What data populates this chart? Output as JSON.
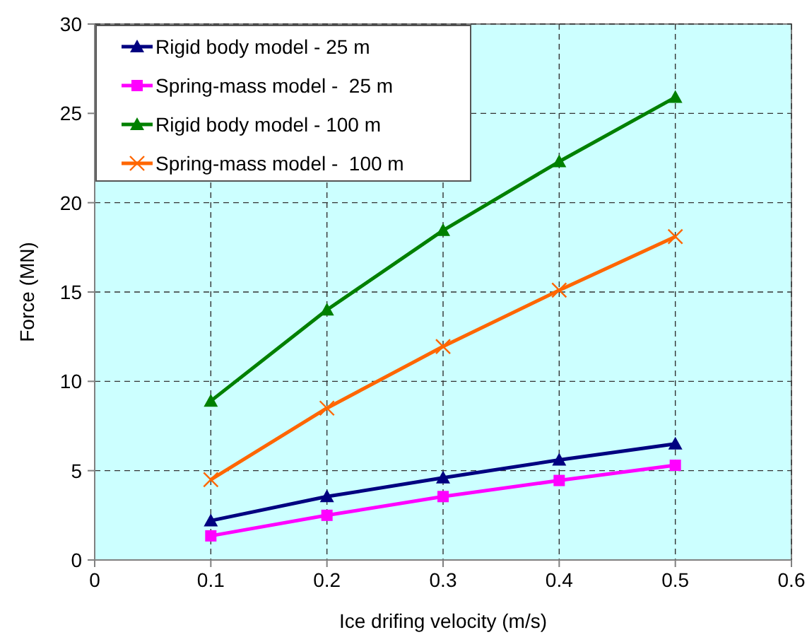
{
  "chart_data": {
    "type": "line",
    "xlabel": "Ice drifing velocity (m/s)",
    "ylabel": "Force (MN)",
    "x": [
      0.1,
      0.2,
      0.3,
      0.4,
      0.5
    ],
    "xlim": [
      0,
      0.6
    ],
    "xticks": [
      0,
      0.1,
      0.2,
      0.3,
      0.4,
      0.5,
      0.6
    ],
    "ylim": [
      0,
      30
    ],
    "yticks": [
      0,
      5,
      10,
      15,
      20,
      25,
      30
    ],
    "grid": true,
    "legend": "top left",
    "series": [
      {
        "name": "Rigid body model - 25 m",
        "color": "#000080",
        "marker": "triangle",
        "values": [
          2.2,
          3.55,
          4.6,
          5.6,
          6.5
        ]
      },
      {
        "name": "Spring-mass model -  25 m",
        "color": "#ff00ff",
        "marker": "square",
        "values": [
          1.35,
          2.5,
          3.55,
          4.45,
          5.3
        ]
      },
      {
        "name": "Rigid body model - 100 m",
        "color": "#008000",
        "marker": "triangle",
        "values": [
          8.9,
          14.0,
          18.45,
          22.3,
          25.9
        ]
      },
      {
        "name": "Spring-mass model -  100 m",
        "color": "#ff6600",
        "marker": "cross",
        "values": [
          4.5,
          8.5,
          11.95,
          15.1,
          18.1
        ]
      }
    ]
  }
}
